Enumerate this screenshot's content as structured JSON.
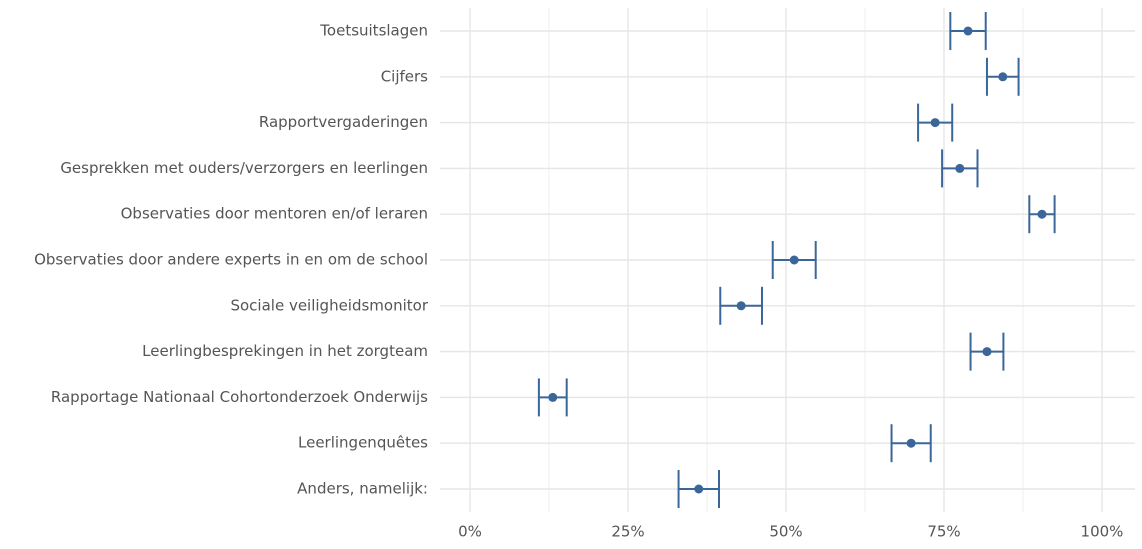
{
  "chart_data": {
    "type": "dot_errorbar",
    "categories": [
      "Toetsuitslagen",
      "Cijfers",
      "Rapportvergaderingen",
      "Gesprekken met ouders/verzorgers en leerlingen",
      "Observaties door mentoren en/of leraren",
      "Observaties door andere experts in en om de school",
      "Sociale veiligheidsmonitor",
      "Leerlingbesprekingen in het zorgteam",
      "Rapportage Nationaal Cohortonderzoek Onderwijs",
      "Leerlingenquêtes",
      "Anders, namelijk:"
    ],
    "values": [
      78.8,
      84.3,
      73.6,
      77.5,
      90.5,
      51.3,
      42.9,
      81.8,
      13.1,
      69.8,
      36.2
    ],
    "errors": [
      2.8,
      2.5,
      2.7,
      2.8,
      2.0,
      3.4,
      3.3,
      2.6,
      2.2,
      3.1,
      3.2
    ],
    "color": "#3b6699",
    "xlim": [
      0,
      100
    ],
    "xticks": [
      {
        "value": 0,
        "label": "0%"
      },
      {
        "value": 25,
        "label": "25%"
      },
      {
        "value": 50,
        "label": "50%"
      },
      {
        "value": 75,
        "label": "75%"
      },
      {
        "value": 100,
        "label": "100%"
      }
    ],
    "grid": true
  }
}
